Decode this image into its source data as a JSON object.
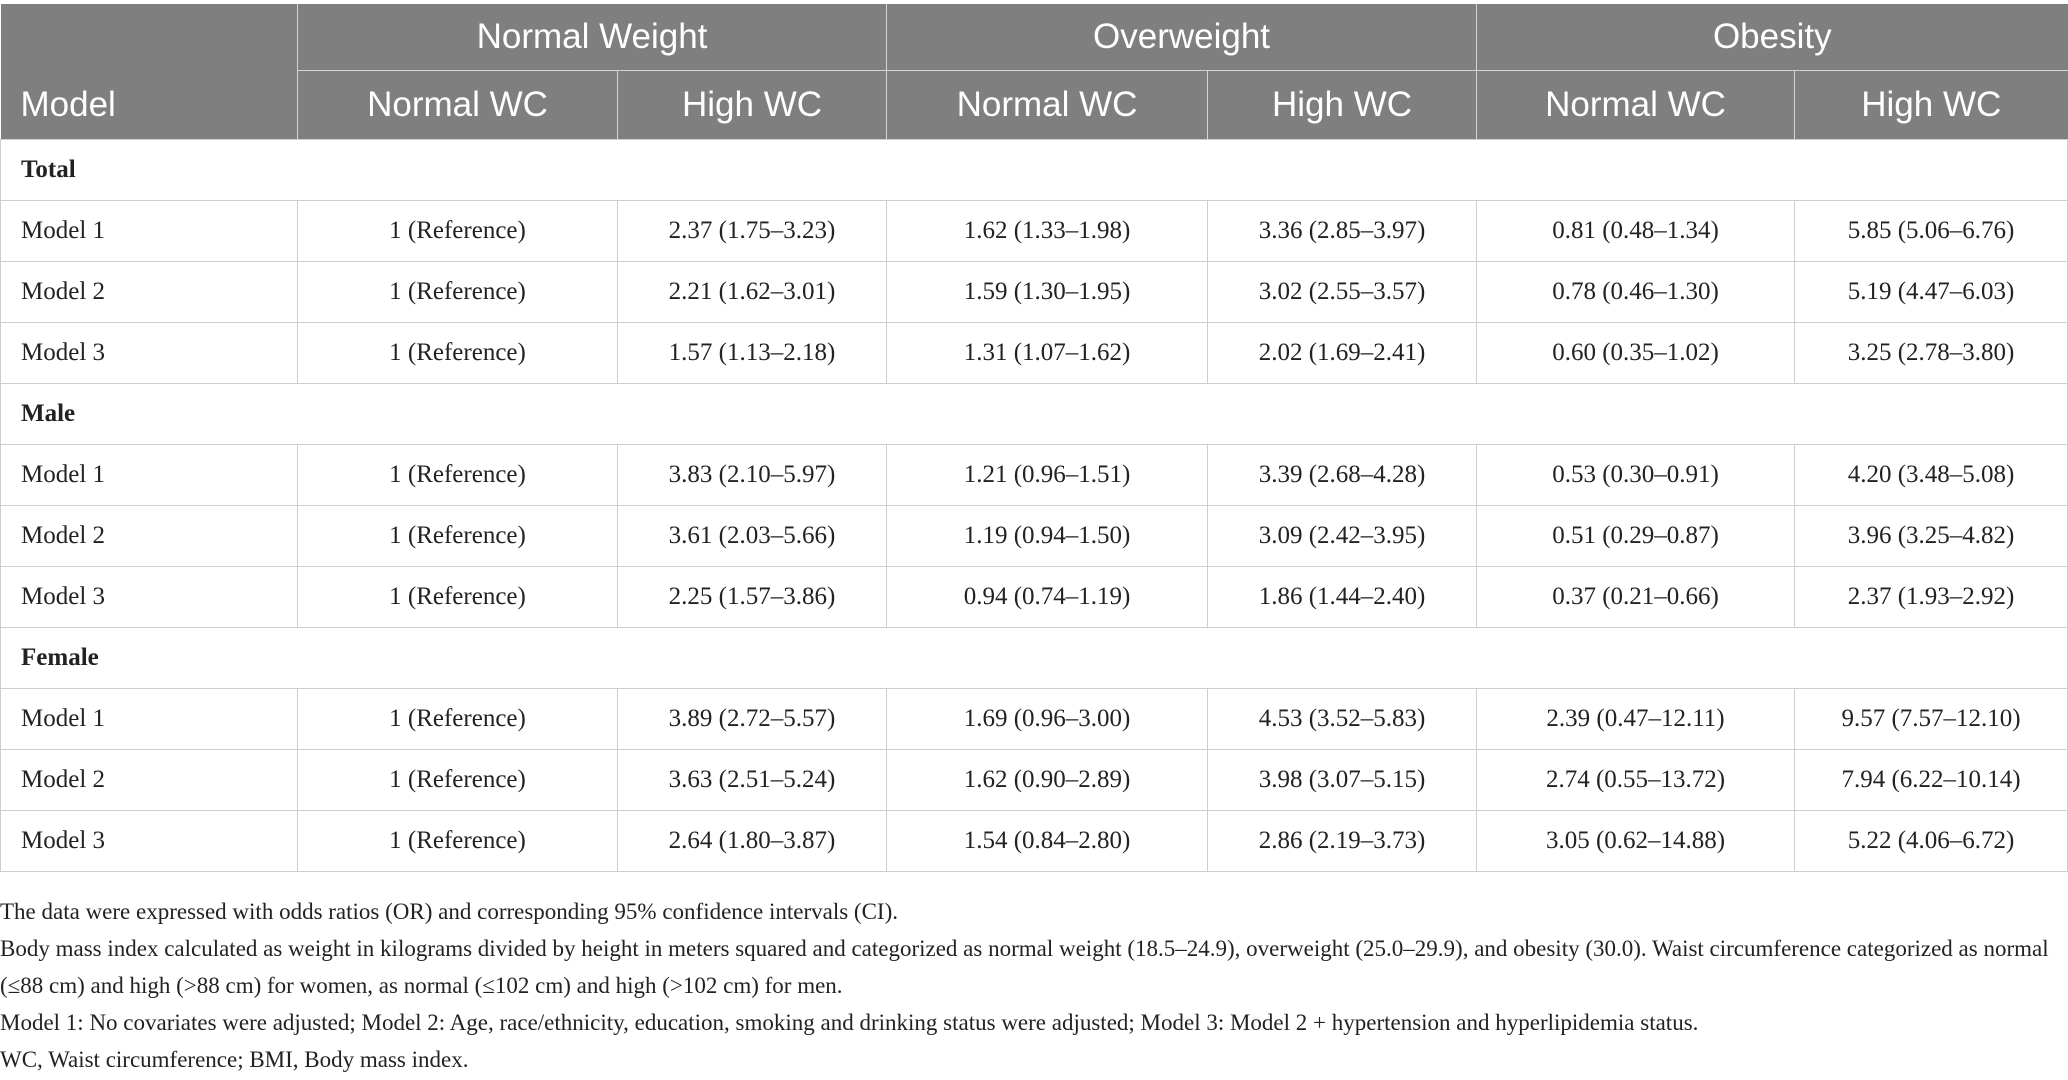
{
  "table": {
    "group_headers": [
      "Normal Weight",
      "Overweight",
      "Obesity"
    ],
    "model_header": "Model",
    "sub_headers": [
      "Normal WC",
      "High WC",
      "Normal WC",
      "High WC",
      "Normal WC",
      "High WC"
    ],
    "sections": [
      {
        "title": "Total",
        "rows": [
          {
            "label": "Model 1",
            "values": [
              "1 (Reference)",
              "2.37 (1.75–3.23)",
              "1.62 (1.33–1.98)",
              "3.36 (2.85–3.97)",
              "0.81 (0.48–1.34)",
              "5.85 (5.06–6.76)"
            ]
          },
          {
            "label": "Model 2",
            "values": [
              "1 (Reference)",
              "2.21 (1.62–3.01)",
              "1.59 (1.30–1.95)",
              "3.02 (2.55–3.57)",
              "0.78 (0.46–1.30)",
              "5.19 (4.47–6.03)"
            ]
          },
          {
            "label": "Model 3",
            "values": [
              "1 (Reference)",
              "1.57 (1.13–2.18)",
              "1.31 (1.07–1.62)",
              "2.02 (1.69–2.41)",
              "0.60 (0.35–1.02)",
              "3.25 (2.78–3.80)"
            ]
          }
        ]
      },
      {
        "title": "Male",
        "rows": [
          {
            "label": "Model 1",
            "values": [
              "1 (Reference)",
              "3.83 (2.10–5.97)",
              "1.21 (0.96–1.51)",
              "3.39 (2.68–4.28)",
              "0.53 (0.30–0.91)",
              "4.20 (3.48–5.08)"
            ]
          },
          {
            "label": "Model 2",
            "values": [
              "1 (Reference)",
              "3.61 (2.03–5.66)",
              "1.19 (0.94–1.50)",
              "3.09 (2.42–3.95)",
              "0.51 (0.29–0.87)",
              "3.96 (3.25–4.82)"
            ]
          },
          {
            "label": "Model 3",
            "values": [
              "1 (Reference)",
              "2.25 (1.57–3.86)",
              "0.94 (0.74–1.19)",
              "1.86 (1.44–2.40)",
              "0.37 (0.21–0.66)",
              "2.37 (1.93–2.92)"
            ]
          }
        ]
      },
      {
        "title": "Female",
        "rows": [
          {
            "label": "Model 1",
            "values": [
              "1 (Reference)",
              "3.89 (2.72–5.57)",
              "1.69 (0.96–3.00)",
              "4.53 (3.52–5.83)",
              "2.39 (0.47–12.11)",
              "9.57 (7.57–12.10)"
            ]
          },
          {
            "label": "Model 2",
            "values": [
              "1 (Reference)",
              "3.63 (2.51–5.24)",
              "1.62 (0.90–2.89)",
              "3.98 (3.07–5.15)",
              "2.74 (0.55–13.72)",
              "7.94 (6.22–10.14)"
            ]
          },
          {
            "label": "Model 3",
            "values": [
              "1 (Reference)",
              "2.64 (1.80–3.87)",
              "1.54 (0.84–2.80)",
              "2.86 (2.19–3.73)",
              "3.05 (0.62–14.88)",
              "5.22 (4.06–6.72)"
            ]
          }
        ]
      }
    ]
  },
  "notes": [
    "The data were expressed with odds ratios (OR) and corresponding 95% confidence intervals (CI).",
    "Body mass index calculated as weight in kilograms divided by height in meters squared and categorized as normal weight (18.5–24.9), overweight (25.0–29.9), and obesity (30.0). Waist circumference categorized as normal (≤88 cm) and high (>88 cm) for women, as normal (≤102 cm) and high (>102 cm) for men.",
    "Model 1: No covariates were adjusted; Model 2: Age, race/ethnicity, education, smoking and drinking status were adjusted; Model 3: Model 2 + hypertension and hyperlipidemia status.",
    "WC, Waist circumference; BMI, Body mass index."
  ]
}
